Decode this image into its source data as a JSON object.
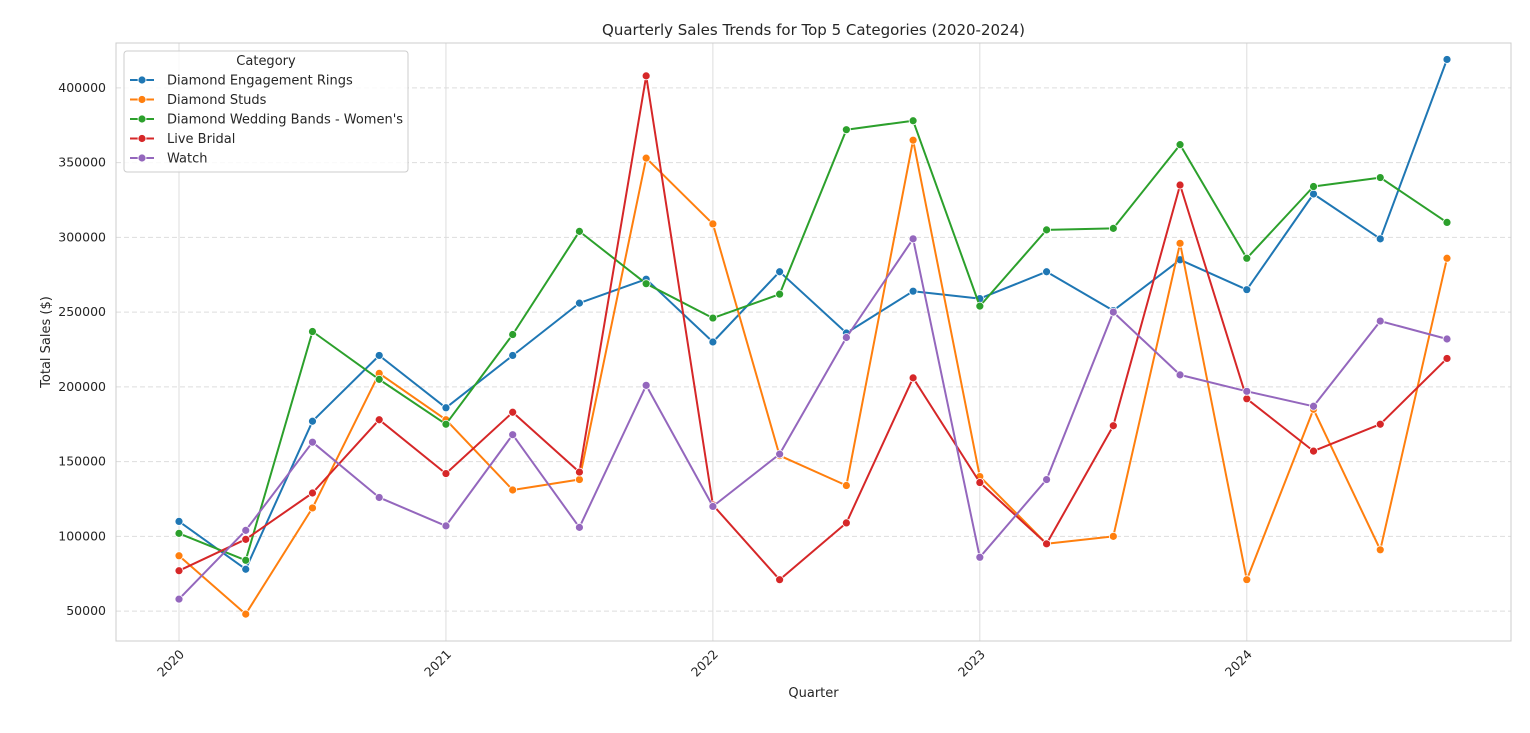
{
  "chart_data": {
    "type": "line",
    "title": "Quarterly Sales Trends for Top 5 Categories (2020-2024)",
    "xlabel": "Quarter",
    "ylabel": "Total Sales ($)",
    "x": [
      "2020-Q1",
      "2020-Q2",
      "2020-Q3",
      "2020-Q4",
      "2021-Q1",
      "2021-Q2",
      "2021-Q3",
      "2021-Q4",
      "2022-Q1",
      "2022-Q2",
      "2022-Q3",
      "2022-Q4",
      "2023-Q1",
      "2023-Q2",
      "2023-Q3",
      "2023-Q4",
      "2024-Q1",
      "2024-Q2",
      "2024-Q3",
      "2024-Q4"
    ],
    "x_tick_labels": [
      "2020",
      "2021",
      "2022",
      "2023",
      "2024"
    ],
    "y_ticks": [
      50000,
      100000,
      150000,
      200000,
      250000,
      300000,
      350000,
      400000
    ],
    "y_tick_labels": [
      "50000",
      "100000",
      "150000",
      "200000",
      "250000",
      "300000",
      "350000",
      "400000"
    ],
    "ylim": [
      30000,
      430000
    ],
    "grid": true,
    "legend": {
      "title": "Category",
      "placement": "top-left"
    },
    "series": [
      {
        "name": "Diamond Engagement Rings",
        "color": "#1f77b4",
        "values": [
          110000,
          78000,
          177000,
          221000,
          186000,
          221000,
          256000,
          272000,
          230000,
          277000,
          236000,
          264000,
          259000,
          277000,
          251000,
          285000,
          265000,
          329000,
          299000,
          419000
        ]
      },
      {
        "name": "Diamond Studs",
        "color": "#ff7f0e",
        "values": [
          87000,
          48000,
          119000,
          209000,
          178000,
          131000,
          138000,
          353000,
          309000,
          154000,
          134000,
          365000,
          140000,
          95000,
          100000,
          296000,
          71000,
          185000,
          91000,
          286000
        ]
      },
      {
        "name": "Diamond Wedding Bands  -  Women's",
        "color": "#2ca02c",
        "values": [
          102000,
          84000,
          237000,
          205000,
          175000,
          235000,
          304000,
          269000,
          246000,
          262000,
          372000,
          378000,
          254000,
          305000,
          306000,
          362000,
          286000,
          334000,
          340000,
          310000
        ]
      },
      {
        "name": "Live Bridal",
        "color": "#d62728",
        "values": [
          77000,
          98000,
          129000,
          178000,
          142000,
          183000,
          143000,
          408000,
          121000,
          71000,
          109000,
          206000,
          136000,
          95000,
          174000,
          335000,
          192000,
          157000,
          175000,
          219000
        ]
      },
      {
        "name": "Watch",
        "color": "#9467bd",
        "values": [
          58000,
          104000,
          163000,
          126000,
          107000,
          168000,
          106000,
          201000,
          120000,
          155000,
          233000,
          299000,
          86000,
          138000,
          250000,
          208000,
          197000,
          187000,
          244000,
          232000
        ]
      }
    ]
  }
}
